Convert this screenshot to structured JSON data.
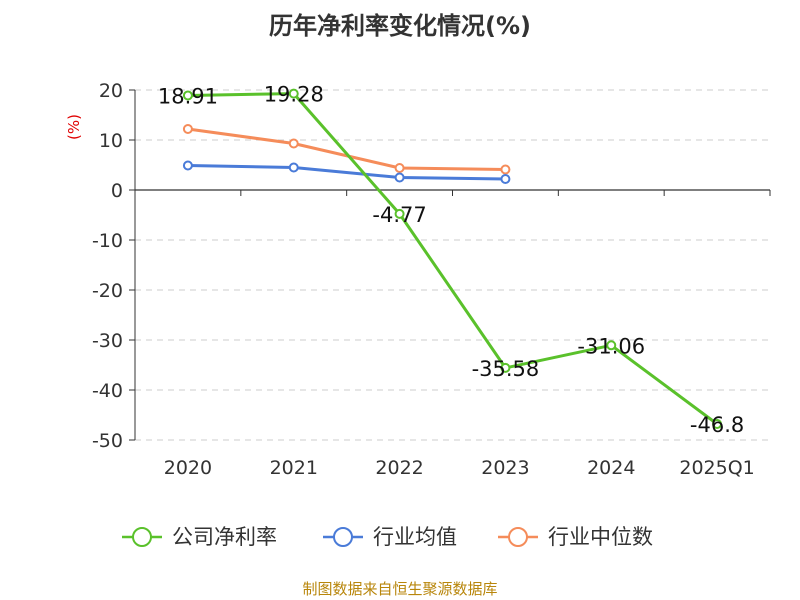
{
  "chart_data": {
    "type": "line",
    "title": "历年净利率变化情况(%)",
    "ylabel": "(%)",
    "xlabel": "",
    "categories": [
      "2020",
      "2021",
      "2022",
      "2023",
      "2024",
      "2025Q1"
    ],
    "ylim": [
      -50,
      20
    ],
    "yticks": [
      20,
      10,
      0,
      -10,
      -20,
      -30,
      -40,
      -50
    ],
    "grid": true,
    "legend_position": "bottom",
    "series": [
      {
        "name": "公司净利率",
        "color": "#5ac12b",
        "values": [
          18.91,
          19.28,
          -4.77,
          -35.58,
          -31.06,
          -46.8
        ],
        "labels": [
          "18.91",
          "19.28",
          "-4.77",
          "-35.58",
          "-31.06",
          "-46.8"
        ]
      },
      {
        "name": "行业均值",
        "color": "#4a7bd8",
        "values": [
          4.9,
          4.5,
          2.5,
          2.2,
          null,
          null
        ]
      },
      {
        "name": "行业中位数",
        "color": "#f58c5a",
        "values": [
          12.2,
          9.3,
          4.4,
          4.1,
          null,
          null
        ]
      }
    ]
  },
  "source": "制图数据来自恒生聚源数据库"
}
